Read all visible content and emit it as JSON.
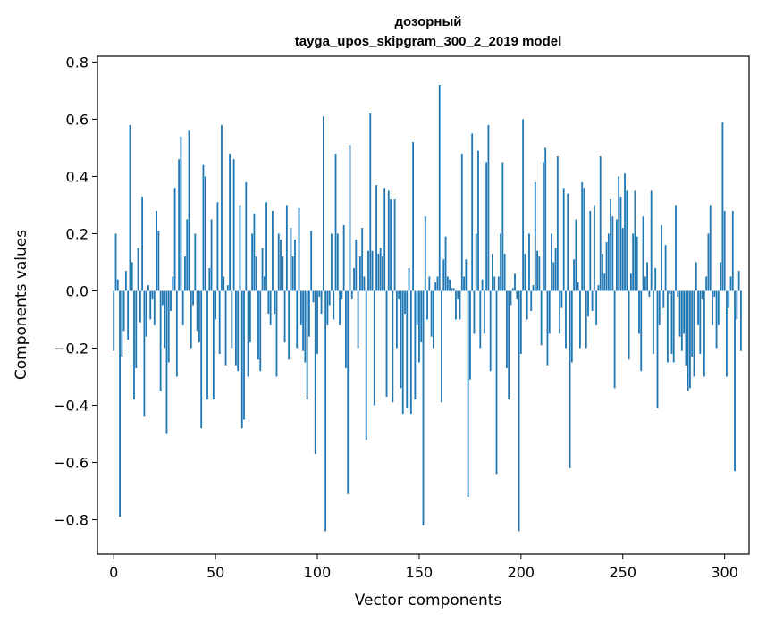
{
  "chart_data": {
    "type": "bar",
    "title": "дозорный",
    "subtitle": "tayga_upos_skipgram_300_2_2019 model",
    "xlabel": "Vector components",
    "ylabel": "Components values",
    "xlim": [
      -8,
      312
    ],
    "ylim": [
      -0.92,
      0.82
    ],
    "xticks": [
      0,
      50,
      100,
      150,
      200,
      250,
      300
    ],
    "yticks": [
      -0.8,
      -0.6,
      -0.4,
      -0.2,
      0.0,
      0.2,
      0.4,
      0.6,
      0.8
    ],
    "ytick_labels": [
      "−0.8",
      "−0.6",
      "−0.4",
      "−0.2",
      "0.0",
      "0.2",
      "0.4",
      "0.6",
      "0.8"
    ],
    "xtick_labels": [
      "0",
      "50",
      "100",
      "150",
      "200",
      "250",
      "300"
    ],
    "grid": false,
    "bar_color": "#1f77b4",
    "values": [
      -0.21,
      0.2,
      0.04,
      -0.79,
      -0.23,
      -0.14,
      0.07,
      -0.17,
      0.58,
      0.1,
      -0.38,
      -0.27,
      0.15,
      -0.11,
      0.33,
      -0.44,
      -0.16,
      0.02,
      -0.1,
      -0.03,
      -0.12,
      0.28,
      0.21,
      -0.35,
      -0.05,
      -0.2,
      -0.5,
      -0.25,
      -0.07,
      0.05,
      0.36,
      -0.3,
      0.46,
      0.54,
      -0.12,
      0.12,
      0.25,
      0.56,
      -0.2,
      -0.05,
      0.2,
      -0.14,
      -0.18,
      -0.48,
      0.44,
      0.4,
      -0.38,
      0.08,
      0.25,
      -0.38,
      -0.1,
      0.31,
      -0.22,
      0.58,
      0.05,
      -0.26,
      0.02,
      0.48,
      -0.2,
      0.46,
      -0.26,
      -0.28,
      0.3,
      -0.48,
      -0.45,
      0.38,
      -0.3,
      -0.18,
      0.2,
      0.27,
      0.12,
      -0.24,
      -0.28,
      0.15,
      0.05,
      0.31,
      -0.08,
      -0.12,
      0.28,
      -0.08,
      -0.3,
      0.2,
      0.18,
      0.12,
      -0.18,
      0.3,
      -0.24,
      0.22,
      0.12,
      0.18,
      -0.2,
      0.29,
      -0.12,
      -0.21,
      -0.25,
      -0.38,
      -0.16,
      0.21,
      -0.04,
      -0.57,
      -0.22,
      -0.02,
      -0.08,
      0.61,
      -0.84,
      -0.12,
      -0.05,
      0.2,
      -0.1,
      0.48,
      0.2,
      -0.12,
      -0.03,
      0.23,
      -0.27,
      -0.71,
      0.51,
      -0.03,
      0.08,
      0.18,
      -0.2,
      0.12,
      0.22,
      0.05,
      -0.52,
      0.14,
      0.62,
      0.14,
      -0.4,
      0.37,
      0.13,
      0.15,
      0.12,
      0.36,
      -0.37,
      0.35,
      0.32,
      -0.39,
      0.32,
      -0.2,
      -0.03,
      -0.34,
      -0.43,
      -0.08,
      -0.41,
      0.08,
      -0.43,
      0.52,
      -0.38,
      -0.12,
      -0.25,
      -0.18,
      -0.82,
      0.26,
      -0.1,
      0.05,
      -0.16,
      -0.2,
      0.03,
      0.05,
      0.72,
      -0.39,
      0.11,
      0.19,
      0.05,
      0.04,
      0.01,
      0.01,
      -0.1,
      -0.03,
      -0.1,
      0.48,
      0.05,
      0.11,
      -0.72,
      -0.31,
      0.55,
      -0.15,
      0.2,
      0.49,
      -0.2,
      0.04,
      -0.15,
      0.45,
      0.58,
      -0.28,
      0.13,
      0.05,
      -0.64,
      0.05,
      0.2,
      0.45,
      0.13,
      -0.27,
      -0.38,
      -0.05,
      0.01,
      0.06,
      -0.03,
      -0.84,
      -0.22,
      0.6,
      0.13,
      -0.1,
      0.2,
      -0.07,
      0.02,
      0.38,
      0.14,
      0.12,
      -0.19,
      0.45,
      0.5,
      -0.26,
      -0.15,
      0.2,
      0.1,
      0.15,
      0.47,
      -0.15,
      -0.06,
      0.36,
      -0.2,
      0.34,
      -0.62,
      -0.25,
      0.11,
      0.25,
      0.03,
      -0.2,
      0.38,
      0.36,
      -0.2,
      -0.09,
      0.28,
      -0.07,
      0.3,
      -0.12,
      0.02,
      0.47,
      0.13,
      0.06,
      0.17,
      0.2,
      0.32,
      0.26,
      -0.34,
      0.25,
      0.4,
      0.33,
      0.22,
      0.41,
      0.35,
      -0.24,
      0.06,
      0.2,
      0.35,
      0.19,
      -0.15,
      -0.28,
      0.26,
      0.05,
      0.1,
      -0.02,
      0.35,
      -0.22,
      0.08,
      -0.41,
      -0.12,
      0.23,
      -0.06,
      0.16,
      -0.25,
      -0.01,
      -0.22,
      -0.25,
      0.3,
      -0.02,
      -0.16,
      -0.21,
      -0.15,
      -0.26,
      -0.35,
      -0.34,
      -0.23,
      -0.3,
      0.1,
      -0.12,
      -0.22,
      -0.03,
      -0.3,
      0.05,
      0.2,
      0.3,
      -0.12,
      -0.02,
      -0.2,
      -0.12,
      0.1,
      0.59,
      0.28,
      -0.3,
      -0.06,
      0.05,
      0.28,
      -0.63,
      -0.1,
      0.07,
      -0.21
    ]
  }
}
